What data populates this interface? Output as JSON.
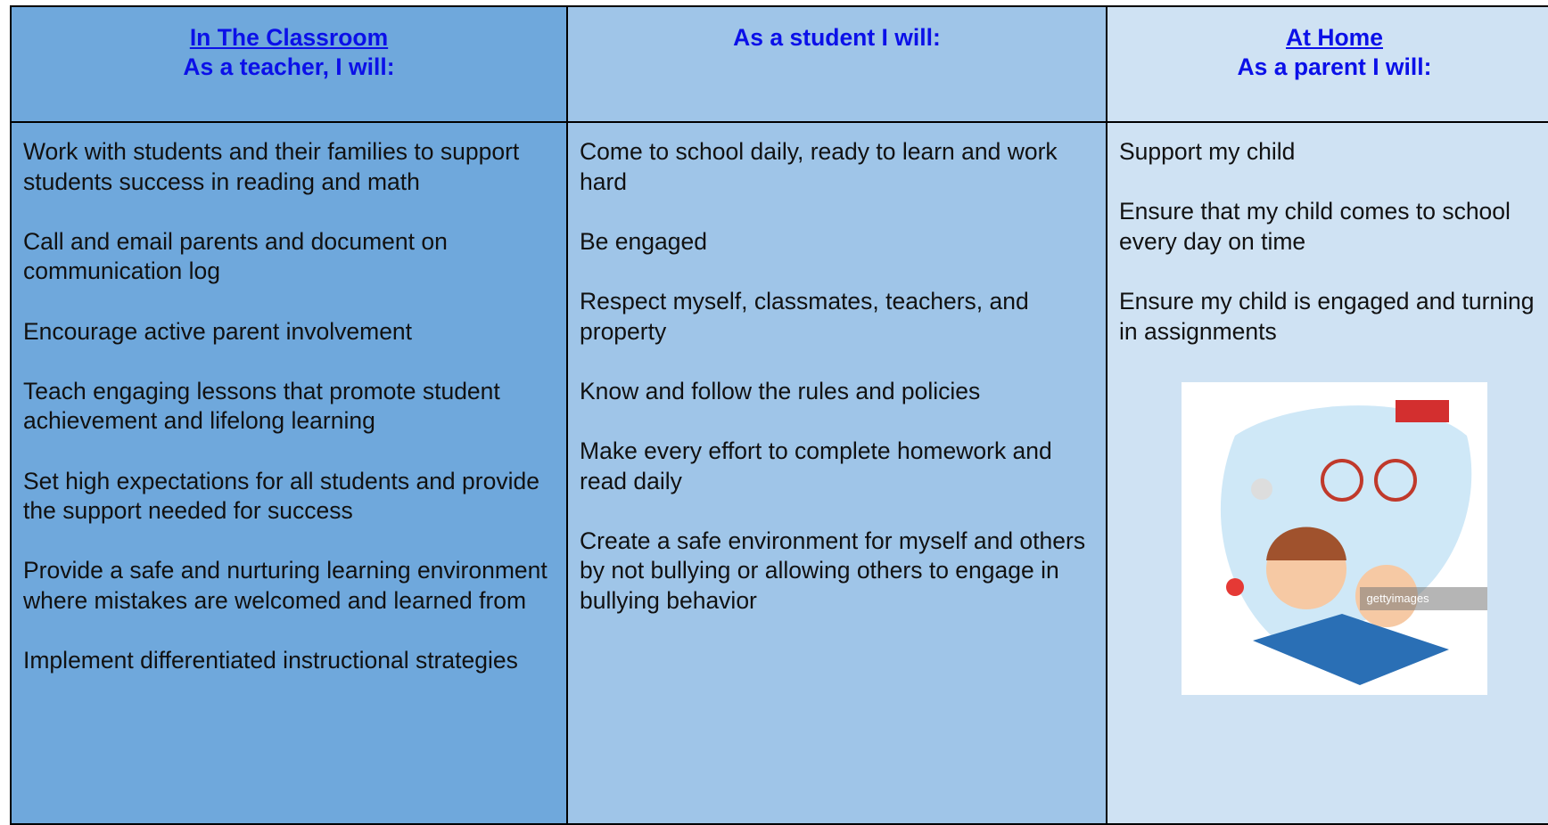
{
  "columns": [
    {
      "header": [
        " In The Classroom",
        "As a teacher, I will:"
      ],
      "items": [
        "Work with students and their families to support students success in reading and math",
        "Call and email parents and document on communication log",
        "Encourage active parent involvement",
        "Teach engaging lessons that promote student achievement and lifelong learning",
        "Set high expectations for all students and provide the support needed for success",
        "Provide a safe and nurturing learning environment where mistakes are welcomed and learned from",
        "Implement differentiated instructional strategies"
      ]
    },
    {
      "header": [
        "As a student I will:"
      ],
      "items": [
        "Come to school daily, ready to learn and work hard",
        "Be engaged",
        "Respect myself, classmates, teachers, and property",
        "Know and follow the rules and policies",
        "Make every effort to complete homework and read daily",
        "Create a safe environment for myself and others by not bullying or allowing others to engage in bullying behavior"
      ]
    },
    {
      "header": [
        "At Home",
        "As a parent I will:"
      ],
      "items": [
        "Support my child",
        "Ensure that my child comes to school every day on time",
        "Ensure my child is engaged and turning in assignments"
      ],
      "image_watermark": "gettyimages"
    }
  ]
}
